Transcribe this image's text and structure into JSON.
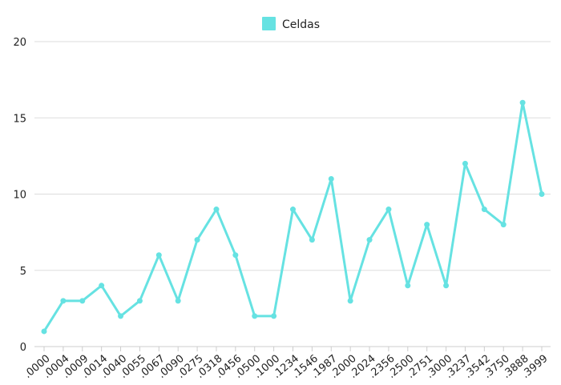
{
  "chart_data": {
    "type": "line",
    "legend": {
      "position": "top-center"
    },
    "grid": {
      "y": true,
      "x": false
    },
    "series": [
      {
        "name": "Celdas",
        "color": "#66e2e2",
        "values": [
          1,
          3,
          3,
          4,
          2,
          3,
          6,
          3,
          7,
          9,
          6,
          2,
          2,
          9,
          7,
          11,
          3,
          7,
          9,
          4,
          8,
          4,
          12,
          9,
          8,
          16,
          10
        ]
      }
    ],
    "categories": [
      ".0000",
      ".0004",
      ".0009",
      ".0014",
      ".0040",
      ".0055",
      ".0067",
      ".0090",
      ".0275",
      ".0318",
      ".0456",
      ".0500",
      ".1000",
      ".1234",
      ".1546",
      ".1987",
      ".2000",
      ".2024",
      ".2356",
      ".2500",
      ".2751",
      ".3000",
      ".3237",
      ".3542",
      ".3750",
      ".3888",
      ".3999"
    ],
    "ylim": [
      0,
      20
    ],
    "yticks": [
      0,
      5,
      10,
      15,
      20
    ]
  }
}
